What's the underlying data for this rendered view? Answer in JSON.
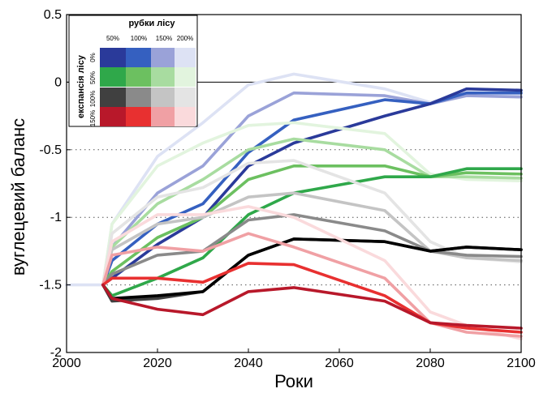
{
  "chart_data": {
    "type": "line",
    "xlabel": "Роки",
    "ylabel": "вуглецевий баланс",
    "xlim": [
      2000,
      2100
    ],
    "ylim": [
      -2,
      0.5
    ],
    "xticks": [
      "2000",
      "2020",
      "2040",
      "2060",
      "2080",
      "2100"
    ],
    "yticks": [
      "0.5",
      "0",
      "-0.5",
      "-1",
      "-1.5",
      "-2"
    ],
    "grid": "dotted horizontal lines at -0.5, -1, -1.5",
    "legend": {
      "position": "top-left",
      "title": "рубки лісу",
      "columns": [
        "50%",
        "100%",
        "150%",
        "200%"
      ],
      "row_title": "експансія лісу",
      "rows": [
        "0%",
        "50%",
        "100%",
        "150%"
      ],
      "colors": [
        [
          "#2a3a9a",
          "#3560c0",
          "#9aa2d8",
          "#dde2f4"
        ],
        [
          "#2fa84a",
          "#6cc060",
          "#a8dca0",
          "#e2f4de"
        ],
        [
          "#404040",
          "#8a8a8a",
          "#c4c4c4",
          "#e4e4e4"
        ],
        [
          "#b8182a",
          "#e83030",
          "#f0a0a4",
          "#fadadc"
        ]
      ]
    },
    "series": [
      {
        "color": "#dde2f4",
        "x": [
          2000,
          2008,
          2010,
          2020,
          2030,
          2040,
          2050,
          2070,
          2080,
          2088,
          2100
        ],
        "y": [
          -1.5,
          -1.5,
          -1.05,
          -0.55,
          -0.3,
          -0.02,
          0.06,
          -0.05,
          -0.15,
          -0.08,
          -0.09
        ]
      },
      {
        "color": "#9aa2d8",
        "x": [
          2008,
          2010,
          2020,
          2030,
          2040,
          2050,
          2070,
          2080,
          2088,
          2100
        ],
        "y": [
          -1.5,
          -1.22,
          -0.82,
          -0.62,
          -0.25,
          -0.08,
          -0.1,
          -0.16,
          -0.1,
          -0.11
        ]
      },
      {
        "color": "#3560c0",
        "x": [
          2008,
          2010,
          2020,
          2030,
          2040,
          2050,
          2070,
          2080,
          2088,
          2100
        ],
        "y": [
          -1.5,
          -1.32,
          -1.05,
          -0.9,
          -0.52,
          -0.28,
          -0.13,
          -0.16,
          -0.08,
          -0.08
        ]
      },
      {
        "color": "#2a3a9a",
        "x": [
          2008,
          2010,
          2020,
          2030,
          2040,
          2050,
          2070,
          2080,
          2088,
          2100
        ],
        "y": [
          -1.5,
          -1.45,
          -1.2,
          -1.0,
          -0.62,
          -0.45,
          -0.25,
          -0.16,
          -0.05,
          -0.06
        ]
      },
      {
        "color": "#e2f4de",
        "x": [
          2008,
          2010,
          2020,
          2030,
          2040,
          2050,
          2070,
          2080,
          2088,
          2100
        ],
        "y": [
          -1.5,
          -1.05,
          -0.62,
          -0.45,
          -0.32,
          -0.3,
          -0.38,
          -0.68,
          -0.72,
          -0.73
        ]
      },
      {
        "color": "#a8dca0",
        "x": [
          2008,
          2010,
          2020,
          2030,
          2040,
          2050,
          2070,
          2080,
          2088,
          2100
        ],
        "y": [
          -1.5,
          -1.22,
          -0.9,
          -0.72,
          -0.5,
          -0.42,
          -0.5,
          -0.7,
          -0.7,
          -0.71
        ]
      },
      {
        "color": "#6cc060",
        "x": [
          2008,
          2010,
          2020,
          2030,
          2040,
          2050,
          2070,
          2080,
          2088,
          2100
        ],
        "y": [
          -1.5,
          -1.4,
          -1.15,
          -1.0,
          -0.72,
          -0.62,
          -0.62,
          -0.7,
          -0.67,
          -0.68
        ]
      },
      {
        "color": "#2fa84a",
        "x": [
          2008,
          2010,
          2020,
          2030,
          2040,
          2050,
          2070,
          2080,
          2088,
          2100
        ],
        "y": [
          -1.5,
          -1.58,
          -1.45,
          -1.3,
          -0.98,
          -0.82,
          -0.7,
          -0.7,
          -0.64,
          -0.64
        ]
      },
      {
        "color": "#e4e4e4",
        "x": [
          2008,
          2010,
          2020,
          2030,
          2040,
          2050,
          2070,
          2080,
          2088,
          2100
        ],
        "y": [
          -1.5,
          -1.12,
          -0.85,
          -0.78,
          -0.6,
          -0.58,
          -0.82,
          -1.18,
          -1.3,
          -1.33
        ]
      },
      {
        "color": "#c4c4c4",
        "x": [
          2008,
          2010,
          2020,
          2030,
          2040,
          2050,
          2070,
          2080,
          2088,
          2100
        ],
        "y": [
          -1.5,
          -1.24,
          -1.05,
          -1.0,
          -0.85,
          -0.82,
          -0.95,
          -1.25,
          -1.3,
          -1.32
        ]
      },
      {
        "color": "#8a8a8a",
        "x": [
          2008,
          2010,
          2020,
          2030,
          2040,
          2050,
          2070,
          2080,
          2088,
          2100
        ],
        "y": [
          -1.5,
          -1.42,
          -1.28,
          -1.25,
          -1.02,
          -0.98,
          -1.1,
          -1.25,
          -1.28,
          -1.29
        ]
      },
      {
        "color": "#404040",
        "x": [
          2008,
          2010,
          2020,
          2030,
          2040,
          2050,
          2070,
          2080,
          2088,
          2100
        ],
        "y": [
          -1.5,
          -1.62,
          -1.6,
          -1.55,
          -1.28,
          -1.16,
          -1.18,
          -1.25,
          -1.22,
          -1.24
        ]
      },
      {
        "color": "#000000",
        "x": [
          2008,
          2010,
          2020,
          2030,
          2040,
          2050,
          2070,
          2080,
          2088,
          2100
        ],
        "y": [
          -1.5,
          -1.6,
          -1.58,
          -1.55,
          -1.28,
          -1.16,
          -1.18,
          -1.25,
          -1.22,
          -1.24
        ]
      },
      {
        "color": "#fadadc",
        "x": [
          2008,
          2010,
          2020,
          2030,
          2040,
          2050,
          2070,
          2080,
          2088,
          2100
        ],
        "y": [
          -1.5,
          -1.18,
          -0.98,
          -0.98,
          -0.92,
          -1.0,
          -1.32,
          -1.7,
          -1.8,
          -1.9
        ]
      },
      {
        "color": "#f0a0a4",
        "x": [
          2008,
          2010,
          2020,
          2030,
          2040,
          2050,
          2070,
          2080,
          2088,
          2100
        ],
        "y": [
          -1.5,
          -1.28,
          -1.22,
          -1.25,
          -1.12,
          -1.22,
          -1.45,
          -1.78,
          -1.85,
          -1.88
        ]
      },
      {
        "color": "#e83030",
        "x": [
          2008,
          2010,
          2020,
          2030,
          2040,
          2050,
          2070,
          2080,
          2088,
          2100
        ],
        "y": [
          -1.5,
          -1.45,
          -1.45,
          -1.48,
          -1.34,
          -1.35,
          -1.58,
          -1.78,
          -1.82,
          -1.85
        ]
      },
      {
        "color": "#b8182a",
        "x": [
          2008,
          2010,
          2020,
          2030,
          2040,
          2050,
          2070,
          2080,
          2088,
          2100
        ],
        "y": [
          -1.5,
          -1.6,
          -1.68,
          -1.72,
          -1.55,
          -1.52,
          -1.62,
          -1.78,
          -1.8,
          -1.82
        ]
      }
    ]
  }
}
